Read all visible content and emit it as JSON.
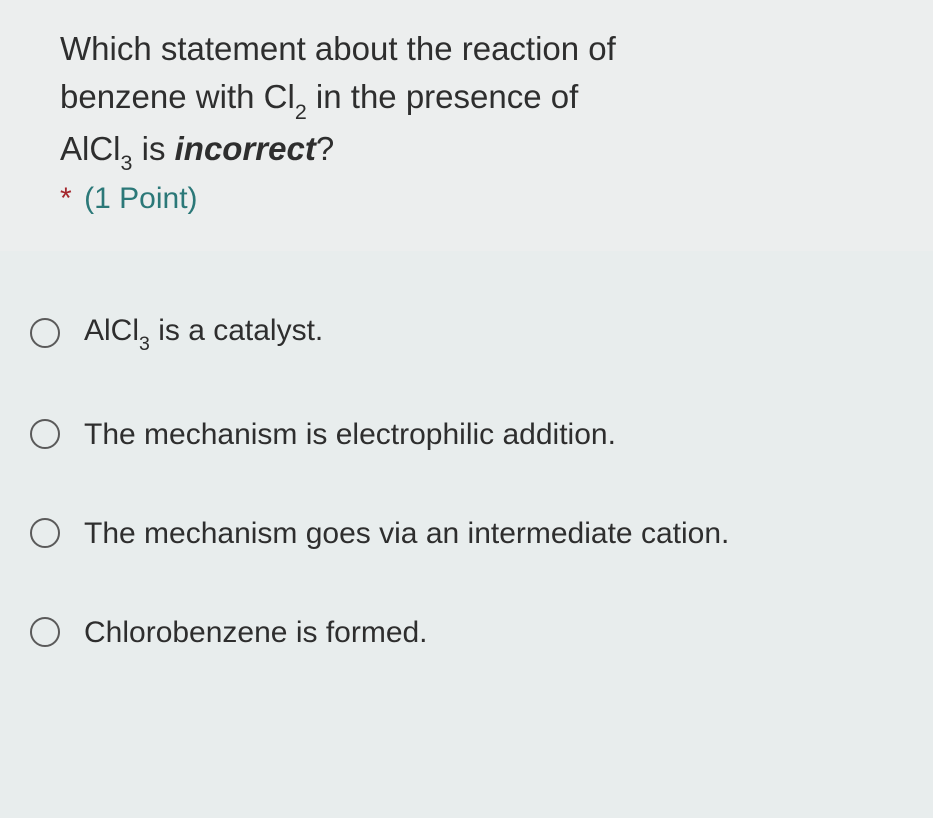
{
  "question": {
    "text_parts": {
      "line1_prefix": "Which statement about the reaction of",
      "line2_prefix": "benzene with Cl",
      "line2_sub": "2",
      "line2_suffix": " in the presence of",
      "line3_prefix": "AlCl",
      "line3_sub": "3",
      "line3_mid": " is ",
      "line3_emph": "incorrect",
      "line3_suffix": "?"
    },
    "required_marker": "*",
    "points_label": "(1 Point)"
  },
  "options": [
    {
      "id": "opt-a",
      "parts": {
        "prefix": "AlCl",
        "sub": "3",
        "suffix": " is a catalyst."
      }
    },
    {
      "id": "opt-b",
      "text": "The mechanism is electrophilic addition."
    },
    {
      "id": "opt-c",
      "text": "The mechanism goes via an intermediate cation."
    },
    {
      "id": "opt-d",
      "text": "Chlorobenzene is formed."
    }
  ],
  "colors": {
    "header_bg": "#eceeee",
    "body_bg": "#e8eded",
    "text": "#2e2e2e",
    "required": "#a4262c",
    "points": "#2b7878",
    "radio_border": "#5a5a5a"
  }
}
